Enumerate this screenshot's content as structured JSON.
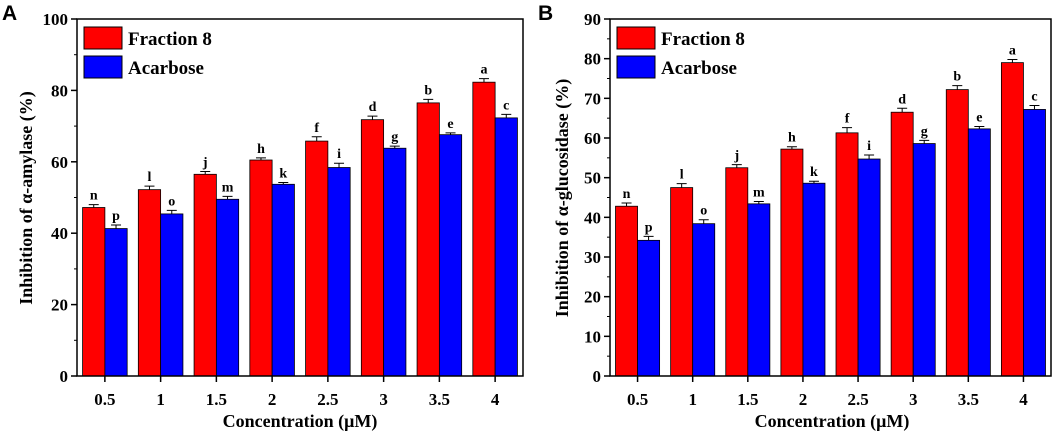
{
  "series_colors": [
    "#ff0000",
    "#0000ff"
  ],
  "chart_data": [
    {
      "type": "bar",
      "panel": "A",
      "categories": [
        "0.5",
        "1",
        "1.5",
        "2",
        "2.5",
        "3",
        "3.5",
        "4"
      ],
      "series": [
        {
          "name": "Fraction 8",
          "color": "#ff0000",
          "values": [
            47.2,
            52.2,
            56.5,
            60.5,
            65.8,
            71.8,
            76.5,
            82.3
          ],
          "errors": [
            0.8,
            1.0,
            0.8,
            0.6,
            1.2,
            1.0,
            1.0,
            1.0
          ],
          "labels": [
            "n",
            "l",
            "j",
            "h",
            "f",
            "d",
            "b",
            "a"
          ]
        },
        {
          "name": "Acarbose",
          "color": "#0000ff",
          "values": [
            41.3,
            45.4,
            49.5,
            53.7,
            58.4,
            63.8,
            67.6,
            72.3
          ],
          "errors": [
            1.0,
            1.0,
            0.8,
            0.5,
            1.2,
            0.6,
            0.5,
            1.0
          ],
          "labels": [
            "p",
            "o",
            "m",
            "k",
            "i",
            "g",
            "e",
            "c"
          ]
        }
      ],
      "xlabel": "Concentration (μM)",
      "ylabel": "Inhibition of α-amylase (%)",
      "ylim": [
        0,
        100
      ],
      "yticks": [
        "0",
        "20",
        "40",
        "60",
        "80",
        "100"
      ],
      "legend_position": "top-left"
    },
    {
      "type": "bar",
      "panel": "B",
      "categories": [
        "0.5",
        "1",
        "1.5",
        "2",
        "2.5",
        "3",
        "3.5",
        "4"
      ],
      "series": [
        {
          "name": "Fraction 8",
          "color": "#ff0000",
          "values": [
            42.8,
            47.5,
            52.5,
            57.2,
            61.3,
            66.5,
            72.2,
            79.0
          ],
          "errors": [
            0.8,
            1.0,
            0.8,
            0.6,
            1.3,
            1.0,
            1.0,
            0.8
          ],
          "labels": [
            "n",
            "l",
            "j",
            "h",
            "f",
            "d",
            "b",
            "a"
          ]
        },
        {
          "name": "Acarbose",
          "color": "#0000ff",
          "values": [
            34.2,
            38.4,
            43.4,
            48.6,
            54.7,
            58.6,
            62.3,
            67.2
          ],
          "errors": [
            1.0,
            1.0,
            0.6,
            0.5,
            1.0,
            0.8,
            0.6,
            1.0
          ],
          "labels": [
            "p",
            "o",
            "m",
            "k",
            "i",
            "g",
            "e",
            "c"
          ]
        }
      ],
      "xlabel": "Concentration (μM)",
      "ylabel": "Inhibition of α-glucosidase (%)",
      "ylim": [
        0,
        90
      ],
      "yticks": [
        "0",
        "10",
        "20",
        "30",
        "40",
        "50",
        "60",
        "70",
        "80",
        "90"
      ],
      "legend_position": "top-left"
    }
  ]
}
